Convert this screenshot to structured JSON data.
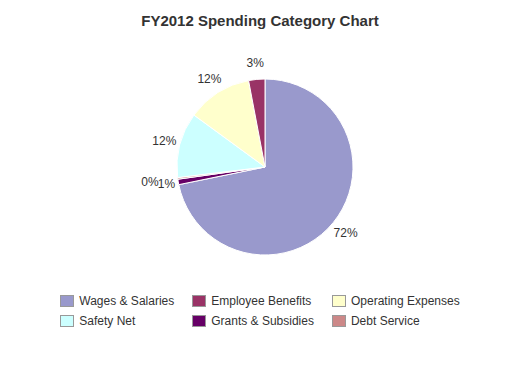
{
  "chart_data": {
    "type": "pie",
    "title": "FY2012 Spending Category Chart",
    "categories": [
      "Wages & Salaries",
      "Grants & Subsidies",
      "Debt Service",
      "Safety Net",
      "Operating Expenses",
      "Employee Benefits"
    ],
    "values": [
      72,
      1,
      0.3,
      12,
      12,
      3
    ],
    "value_labels": [
      "72%",
      "1%",
      "0%",
      "12%",
      "12%",
      "3%"
    ],
    "colors": [
      "#9999CC",
      "#660066",
      "#CC8888",
      "#CCFFFF",
      "#FFFFCC",
      "#993366"
    ],
    "data_labels": true,
    "legend": "bottom",
    "legend_entries": [
      "Wages & Salaries",
      "Employee Benefits",
      "Operating Expenses",
      "Safety Net",
      "Grants & Subsidies",
      "Debt Service"
    ]
  }
}
